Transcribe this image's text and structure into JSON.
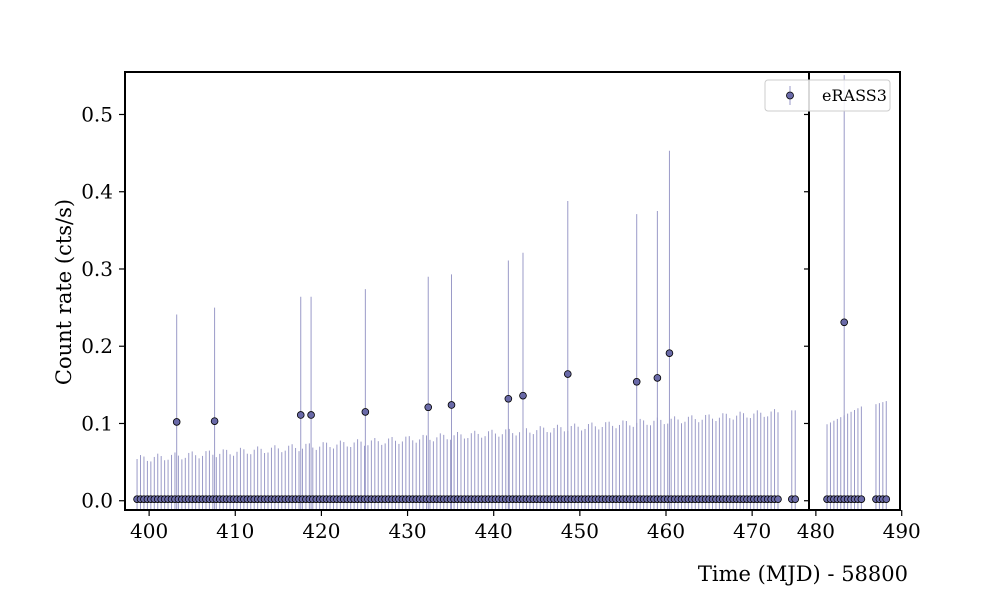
{
  "chart_data": {
    "type": "scatter",
    "title": "",
    "xlabel": "Time (MJD) - 58800",
    "ylabel": "Count rate (cts/s)",
    "panels": [
      {
        "xlim": [
          397.2,
          476.6
        ],
        "ylim": [
          -0.012,
          0.555
        ],
        "xticks": [
          400,
          410,
          420,
          430,
          440,
          450,
          460,
          470
        ]
      },
      {
        "xlim": [
          479.2,
          489.8
        ],
        "ylim": [
          -0.012,
          0.555
        ],
        "xticks": [
          480,
          490
        ]
      }
    ],
    "yticks": [
      "0.0",
      "0.1",
      "0.2",
      "0.3",
      "0.4",
      "0.5"
    ],
    "grid": false,
    "legend": {
      "position": "top-right",
      "entries": [
        "eRASS3"
      ]
    },
    "colors": {
      "marker": "#6a6aa8",
      "errorbar": "#9a9ac8",
      "edge": "#000000"
    },
    "series": [
      {
        "name": "eRASS3",
        "detections": [
          {
            "x": 403.2,
            "y": 0.102,
            "err": 0.139
          },
          {
            "x": 407.6,
            "y": 0.103,
            "err": 0.147
          },
          {
            "x": 417.6,
            "y": 0.111,
            "err": 0.153
          },
          {
            "x": 418.8,
            "y": 0.111,
            "err": 0.153
          },
          {
            "x": 425.1,
            "y": 0.115,
            "err": 0.159
          },
          {
            "x": 432.4,
            "y": 0.121,
            "err": 0.169
          },
          {
            "x": 435.1,
            "y": 0.124,
            "err": 0.169
          },
          {
            "x": 441.7,
            "y": 0.132,
            "err": 0.179
          },
          {
            "x": 443.4,
            "y": 0.136,
            "err": 0.185
          },
          {
            "x": 448.6,
            "y": 0.164,
            "err": 0.224
          },
          {
            "x": 456.6,
            "y": 0.154,
            "err": 0.217
          },
          {
            "x": 459.0,
            "y": 0.159,
            "err": 0.216
          },
          {
            "x": 460.4,
            "y": 0.191,
            "err": 0.262
          },
          {
            "x": 483.3,
            "y": 0.231,
            "err": 0.32
          }
        ],
        "upper_limits": {
          "panel1": {
            "x_start": 398.6,
            "x_end": 473.2,
            "step": 0.4,
            "y": 0.002,
            "err_start": 0.052,
            "err_end": 0.112
          },
          "panel1_tail": [
            {
              "x": 474.6,
              "err": 0.115
            },
            {
              "x": 475.0,
              "err": 0.115
            }
          ],
          "panel2": [
            {
              "x_start": 481.3,
              "x_end": 485.3,
              "step": 0.4,
              "y": 0.002,
              "err_start": 0.097,
              "err_end": 0.12
            },
            {
              "x_start": 487.0,
              "x_end": 488.2,
              "step": 0.4,
              "y": 0.002,
              "err_start": 0.123,
              "err_end": 0.127
            }
          ]
        }
      }
    ]
  }
}
